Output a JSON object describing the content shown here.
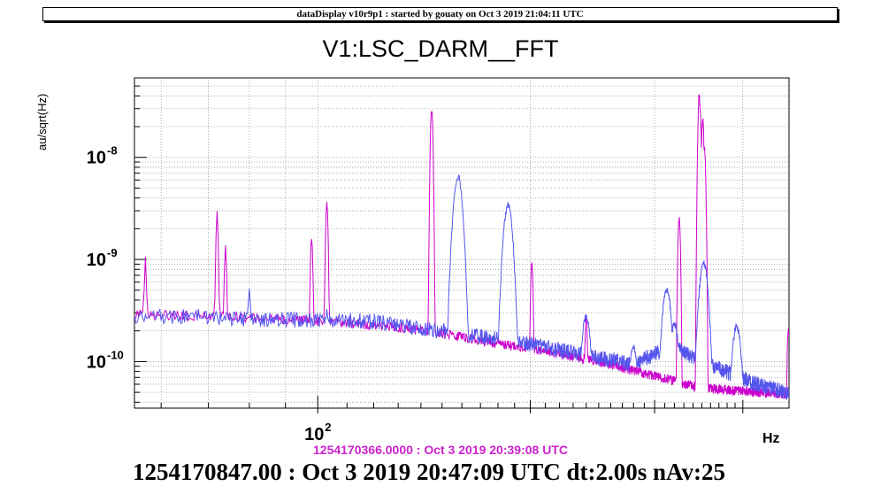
{
  "banner": "dataDisplay v10r9p1 : started by gouaty on Oct  3 2019 21:04:11 UTC",
  "footer": {
    "reference_time": "1254170366.0000 : Oct  3 2019 20:39:08 UTC",
    "current_time": "1254170847.00 : Oct  3 2019 20:47:09 UTC dt:2.00s nAv:25"
  },
  "colors": {
    "reference": "#cc00cc",
    "current": "#5555ee",
    "grid": "#9a9a9a"
  },
  "chart_data": {
    "type": "line",
    "title": "V1:LSC_DARM__FFT",
    "ylabel": "au/sqrt(Hz)",
    "xlabel": "Hz",
    "xscale": "log",
    "yscale": "log",
    "xlim": [
      55,
      465
    ],
    "ylim": [
      3.5e-11,
      6e-08
    ],
    "grid": true,
    "x_tick_labels": [
      {
        "value": 100,
        "label": "10",
        "exponent": "2"
      }
    ],
    "y_tick_labels": [
      {
        "value": 1e-10,
        "label": "10",
        "exponent": "-10"
      },
      {
        "value": 1e-09,
        "label": "10",
        "exponent": "-9"
      },
      {
        "value": 1e-08,
        "label": "10",
        "exponent": "-8"
      }
    ],
    "series": [
      {
        "name": "1254170366.0000 : Oct  3 2019 20:39:08 UTC",
        "color": "#cc00cc",
        "baseline": [
          [
            55,
            2.9e-10
          ],
          [
            70,
            2.8e-10
          ],
          [
            80,
            2.7e-10
          ],
          [
            100,
            2.5e-10
          ],
          [
            120,
            2.3e-10
          ],
          [
            150,
            1.9e-10
          ],
          [
            180,
            1.5e-10
          ],
          [
            200,
            1.35e-10
          ],
          [
            250,
            1e-10
          ],
          [
            280,
            8.2e-11
          ],
          [
            320,
            6.5e-11
          ],
          [
            340,
            5.8e-11
          ],
          [
            380,
            5.3e-11
          ],
          [
            420,
            5e-11
          ],
          [
            465,
            4.8e-11
          ]
        ],
        "peaks": [
          [
            57,
            1.1e-09
          ],
          [
            72,
            3e-09
          ],
          [
            74,
            1.4e-09
          ],
          [
            98,
            1.8e-09
          ],
          [
            103,
            4e-09
          ],
          [
            145,
            3.3e-08
          ],
          [
            201,
            1e-09
          ],
          [
            240,
            3e-10
          ],
          [
            325,
            2.8e-09
          ],
          [
            347,
            4.4e-08
          ],
          [
            348,
            3e-08
          ],
          [
            351,
            2.6e-08
          ],
          [
            353,
            1.3e-08
          ],
          [
            464,
            2.2e-10
          ]
        ]
      },
      {
        "name": "1254170847.00 : Oct  3 2019 20:47:09 UTC dt:2.00s nAv:25",
        "color": "#5555ee",
        "baseline": [
          [
            55,
            2.8e-10
          ],
          [
            70,
            2.8e-10
          ],
          [
            80,
            2.6e-10
          ],
          [
            100,
            2.6e-10
          ],
          [
            120,
            2.5e-10
          ],
          [
            150,
            2e-10
          ],
          [
            180,
            1.7e-10
          ],
          [
            200,
            1.5e-10
          ],
          [
            250,
            1.1e-10
          ],
          [
            280,
            9.5e-11
          ],
          [
            320,
            1.5e-10
          ],
          [
            340,
            1.1e-10
          ],
          [
            380,
            8e-11
          ],
          [
            420,
            6e-11
          ],
          [
            465,
            5e-11
          ]
        ],
        "peaks": [
          [
            61,
            3e-10
          ],
          [
            80,
            6e-10
          ],
          [
            103,
            3.5e-10
          ],
          [
            158,
            7e-09
          ],
          [
            186,
            3.7e-09
          ],
          [
            240,
            3e-10
          ],
          [
            280,
            1.5e-10
          ],
          [
            312,
            5.5e-10
          ],
          [
            320,
            2.5e-10
          ],
          [
            352,
            1e-09
          ],
          [
            392,
            2.4e-10
          ]
        ]
      }
    ]
  }
}
